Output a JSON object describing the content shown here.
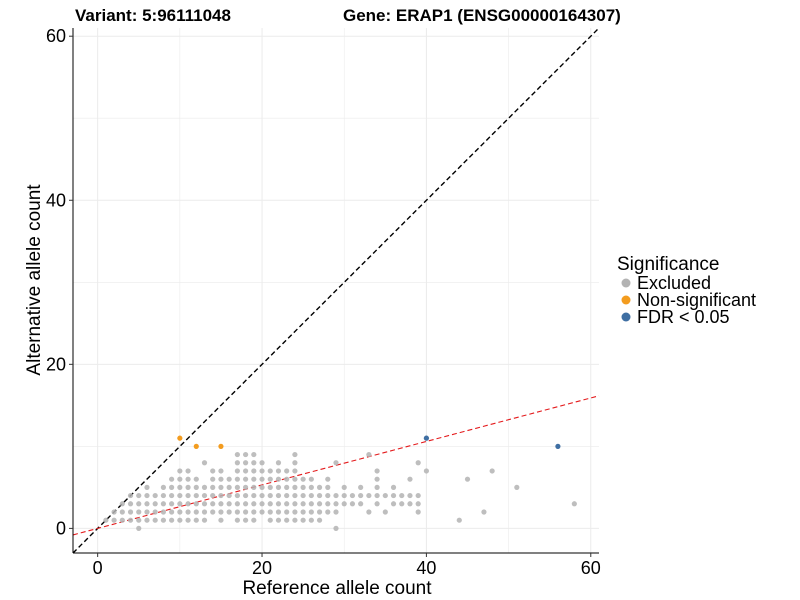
{
  "chart_data": {
    "type": "scatter",
    "title_left": "Variant: 5:96111048",
    "title_right": "Gene: ERAP1 (ENSG00000164307)",
    "xlabel": "Reference allele count",
    "ylabel": "Alternative allele count",
    "xlim": [
      -3,
      61
    ],
    "ylim": [
      -3,
      61
    ],
    "x_ticks": [
      0,
      20,
      40,
      60
    ],
    "y_ticks": [
      0,
      20,
      40,
      60
    ],
    "legend": {
      "title": "Significance",
      "position": "right",
      "entries": [
        {
          "label": "Excluded",
          "color": "#b3b3b3"
        },
        {
          "label": "Non-significant",
          "color": "#f39c1f"
        },
        {
          "label": "FDR < 0.05",
          "color": "#3f6fa3"
        }
      ]
    },
    "reference_lines": [
      {
        "name": "identity",
        "slope": 1,
        "intercept": 0,
        "color": "#000000",
        "style": "dashed"
      },
      {
        "name": "fit",
        "slope": 0.265,
        "intercept": 0.0,
        "color": "#e41a1c",
        "style": "dashed"
      }
    ],
    "series": [
      {
        "name": "Excluded",
        "color": "#b3b3b3",
        "points": [
          [
            1,
            1
          ],
          [
            2,
            1
          ],
          [
            2,
            2
          ],
          [
            3,
            1
          ],
          [
            3,
            2
          ],
          [
            3,
            3
          ],
          [
            4,
            1
          ],
          [
            4,
            2
          ],
          [
            4,
            3
          ],
          [
            4,
            4
          ],
          [
            5,
            0
          ],
          [
            5,
            1
          ],
          [
            5,
            2
          ],
          [
            5,
            3
          ],
          [
            5,
            4
          ],
          [
            6,
            1
          ],
          [
            6,
            2
          ],
          [
            6,
            3
          ],
          [
            6,
            4
          ],
          [
            6,
            5
          ],
          [
            7,
            1
          ],
          [
            7,
            2
          ],
          [
            7,
            3
          ],
          [
            7,
            4
          ],
          [
            8,
            1
          ],
          [
            8,
            2
          ],
          [
            8,
            3
          ],
          [
            8,
            4
          ],
          [
            8,
            5
          ],
          [
            9,
            1
          ],
          [
            9,
            2
          ],
          [
            9,
            3
          ],
          [
            9,
            4
          ],
          [
            9,
            5
          ],
          [
            9,
            6
          ],
          [
            10,
            1
          ],
          [
            10,
            2
          ],
          [
            10,
            3
          ],
          [
            10,
            4
          ],
          [
            10,
            5
          ],
          [
            10,
            6
          ],
          [
            10,
            7
          ],
          [
            11,
            1
          ],
          [
            11,
            2
          ],
          [
            11,
            3
          ],
          [
            11,
            4
          ],
          [
            11,
            5
          ],
          [
            11,
            6
          ],
          [
            11,
            7
          ],
          [
            12,
            1
          ],
          [
            12,
            2
          ],
          [
            12,
            3
          ],
          [
            12,
            4
          ],
          [
            12,
            5
          ],
          [
            12,
            6
          ],
          [
            13,
            1
          ],
          [
            13,
            2
          ],
          [
            13,
            3
          ],
          [
            13,
            4
          ],
          [
            13,
            5
          ],
          [
            13,
            8
          ],
          [
            14,
            2
          ],
          [
            14,
            3
          ],
          [
            14,
            4
          ],
          [
            14,
            5
          ],
          [
            14,
            6
          ],
          [
            14,
            7
          ],
          [
            15,
            1
          ],
          [
            15,
            2
          ],
          [
            15,
            3
          ],
          [
            15,
            4
          ],
          [
            15,
            5
          ],
          [
            15,
            6
          ],
          [
            15,
            7
          ],
          [
            16,
            2
          ],
          [
            16,
            3
          ],
          [
            16,
            4
          ],
          [
            16,
            5
          ],
          [
            16,
            6
          ],
          [
            17,
            1
          ],
          [
            17,
            2
          ],
          [
            17,
            3
          ],
          [
            17,
            4
          ],
          [
            17,
            5
          ],
          [
            17,
            6
          ],
          [
            17,
            7
          ],
          [
            17,
            8
          ],
          [
            17,
            9
          ],
          [
            18,
            1
          ],
          [
            18,
            2
          ],
          [
            18,
            3
          ],
          [
            18,
            4
          ],
          [
            18,
            5
          ],
          [
            18,
            6
          ],
          [
            18,
            7
          ],
          [
            18,
            8
          ],
          [
            18,
            9
          ],
          [
            19,
            1
          ],
          [
            19,
            2
          ],
          [
            19,
            3
          ],
          [
            19,
            4
          ],
          [
            19,
            5
          ],
          [
            19,
            6
          ],
          [
            19,
            7
          ],
          [
            19,
            8
          ],
          [
            19,
            9
          ],
          [
            20,
            2
          ],
          [
            20,
            3
          ],
          [
            20,
            4
          ],
          [
            20,
            5
          ],
          [
            20,
            6
          ],
          [
            20,
            7
          ],
          [
            20,
            8
          ],
          [
            21,
            1
          ],
          [
            21,
            2
          ],
          [
            21,
            3
          ],
          [
            21,
            4
          ],
          [
            21,
            5
          ],
          [
            21,
            6
          ],
          [
            21,
            7
          ],
          [
            22,
            1
          ],
          [
            22,
            2
          ],
          [
            22,
            3
          ],
          [
            22,
            4
          ],
          [
            22,
            5
          ],
          [
            22,
            6
          ],
          [
            22,
            7
          ],
          [
            22,
            8
          ],
          [
            23,
            1
          ],
          [
            23,
            2
          ],
          [
            23,
            3
          ],
          [
            23,
            4
          ],
          [
            23,
            5
          ],
          [
            23,
            6
          ],
          [
            23,
            7
          ],
          [
            24,
            1
          ],
          [
            24,
            2
          ],
          [
            24,
            3
          ],
          [
            24,
            4
          ],
          [
            24,
            5
          ],
          [
            24,
            6
          ],
          [
            24,
            7
          ],
          [
            24,
            8
          ],
          [
            24,
            9
          ],
          [
            25,
            1
          ],
          [
            25,
            2
          ],
          [
            25,
            3
          ],
          [
            25,
            4
          ],
          [
            25,
            5
          ],
          [
            25,
            6
          ],
          [
            26,
            1
          ],
          [
            26,
            2
          ],
          [
            26,
            3
          ],
          [
            26,
            4
          ],
          [
            26,
            5
          ],
          [
            26,
            6
          ],
          [
            27,
            1
          ],
          [
            27,
            2
          ],
          [
            27,
            3
          ],
          [
            27,
            4
          ],
          [
            27,
            5
          ],
          [
            28,
            2
          ],
          [
            28,
            3
          ],
          [
            28,
            4
          ],
          [
            28,
            5
          ],
          [
            28,
            6
          ],
          [
            29,
            0
          ],
          [
            29,
            2
          ],
          [
            29,
            3
          ],
          [
            29,
            4
          ],
          [
            29,
            8
          ],
          [
            30,
            3
          ],
          [
            30,
            4
          ],
          [
            30,
            5
          ],
          [
            31,
            3
          ],
          [
            31,
            4
          ],
          [
            32,
            3
          ],
          [
            32,
            4
          ],
          [
            32,
            5
          ],
          [
            33,
            2
          ],
          [
            33,
            4
          ],
          [
            33,
            9
          ],
          [
            34,
            3
          ],
          [
            34,
            4
          ],
          [
            34,
            5
          ],
          [
            34,
            6
          ],
          [
            34,
            7
          ],
          [
            35,
            2
          ],
          [
            35,
            4
          ],
          [
            36,
            3
          ],
          [
            36,
            4
          ],
          [
            36,
            5
          ],
          [
            37,
            3
          ],
          [
            37,
            4
          ],
          [
            38,
            3
          ],
          [
            38,
            4
          ],
          [
            38,
            6
          ],
          [
            39,
            2
          ],
          [
            39,
            3
          ],
          [
            39,
            4
          ],
          [
            39,
            8
          ],
          [
            40,
            7
          ],
          [
            40,
            11
          ],
          [
            44,
            1
          ],
          [
            45,
            6
          ],
          [
            47,
            2
          ],
          [
            48,
            7
          ],
          [
            51,
            5
          ],
          [
            58,
            3
          ]
        ]
      },
      {
        "name": "Non-significant",
        "color": "#f39c1f",
        "points": [
          [
            10,
            11
          ],
          [
            12,
            10
          ],
          [
            15,
            10
          ]
        ]
      },
      {
        "name": "FDR < 0.05",
        "color": "#3f6fa3",
        "points": [
          [
            40,
            11
          ],
          [
            56,
            10
          ]
        ]
      }
    ]
  }
}
